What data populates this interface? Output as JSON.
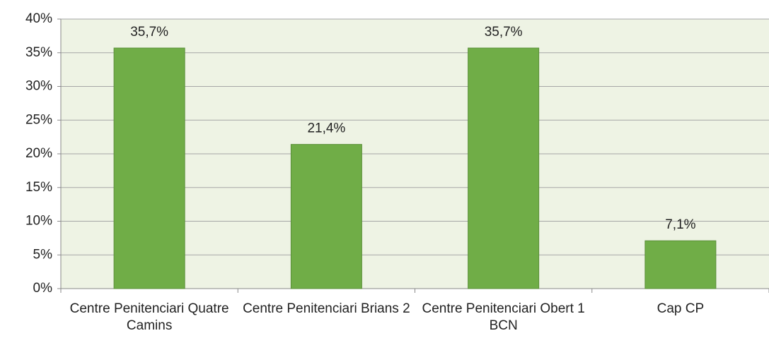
{
  "chart_data": {
    "type": "bar",
    "categories": [
      "Centre Penitenciari Quatre Camins",
      "Centre Penitenciari Brians 2",
      "Centre Penitenciari Obert 1 BCN",
      "Cap CP"
    ],
    "values": [
      35.7,
      21.4,
      35.7,
      7.1
    ],
    "value_labels": [
      "35,7%",
      "21,4%",
      "35,7%",
      "7,1%"
    ],
    "color": "#70ad47",
    "ylim": [
      0,
      40
    ],
    "yticks": [
      {
        "value": 0,
        "label": "0%"
      },
      {
        "value": 5,
        "label": "5%"
      },
      {
        "value": 10,
        "label": "10%"
      },
      {
        "value": 15,
        "label": "15%"
      },
      {
        "value": 20,
        "label": "20%"
      },
      {
        "value": 25,
        "label": "25%"
      },
      {
        "value": 30,
        "label": "30%"
      },
      {
        "value": 35,
        "label": "35%"
      },
      {
        "value": 40,
        "label": "40%"
      }
    ],
    "grid": true
  }
}
